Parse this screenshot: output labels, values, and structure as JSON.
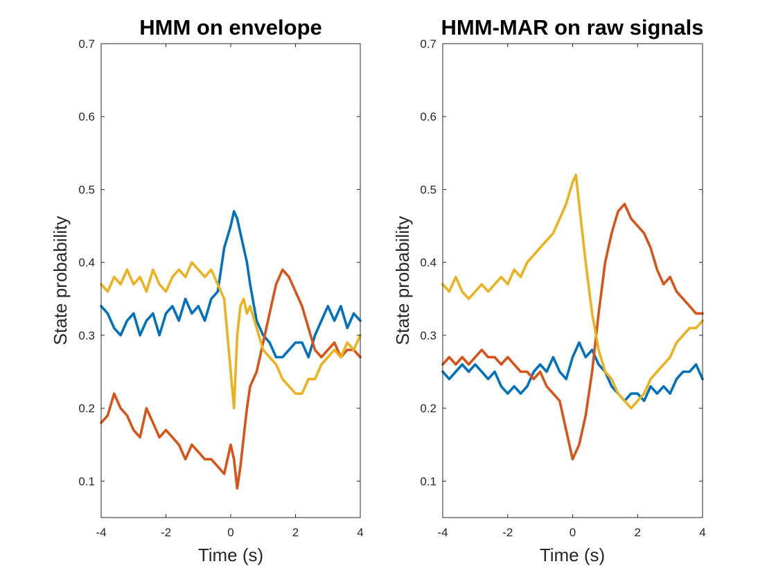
{
  "chart_data": [
    {
      "type": "line",
      "title": "HMM on envelope",
      "xlabel": "Time (s)",
      "ylabel": "State probability",
      "xlim": [
        -4,
        4
      ],
      "ylim": [
        0.05,
        0.7
      ],
      "xticks": [
        -4,
        -2,
        0,
        2,
        4
      ],
      "yticks": [
        0.1,
        0.2,
        0.3,
        0.4,
        0.5,
        0.6,
        0.7
      ],
      "grid": false,
      "series": [
        {
          "color": "#0072BD",
          "x": [
            -4.0,
            -3.8,
            -3.6,
            -3.4,
            -3.2,
            -3.0,
            -2.8,
            -2.6,
            -2.4,
            -2.2,
            -2.0,
            -1.8,
            -1.6,
            -1.4,
            -1.2,
            -1.0,
            -0.8,
            -0.6,
            -0.4,
            -0.2,
            0.0,
            0.1,
            0.2,
            0.3,
            0.4,
            0.5,
            0.6,
            0.8,
            1.0,
            1.2,
            1.4,
            1.6,
            1.8,
            2.0,
            2.2,
            2.4,
            2.6,
            2.8,
            3.0,
            3.2,
            3.4,
            3.6,
            3.8,
            4.0
          ],
          "y": [
            0.34,
            0.33,
            0.31,
            0.3,
            0.32,
            0.33,
            0.3,
            0.32,
            0.33,
            0.3,
            0.33,
            0.34,
            0.32,
            0.35,
            0.33,
            0.34,
            0.32,
            0.35,
            0.36,
            0.42,
            0.45,
            0.47,
            0.46,
            0.44,
            0.42,
            0.4,
            0.37,
            0.32,
            0.3,
            0.29,
            0.27,
            0.27,
            0.28,
            0.29,
            0.29,
            0.27,
            0.3,
            0.32,
            0.34,
            0.32,
            0.34,
            0.31,
            0.33,
            0.32
          ]
        },
        {
          "color": "#D95319",
          "x": [
            -4.0,
            -3.8,
            -3.6,
            -3.4,
            -3.2,
            -3.0,
            -2.8,
            -2.6,
            -2.4,
            -2.2,
            -2.0,
            -1.8,
            -1.6,
            -1.4,
            -1.2,
            -1.0,
            -0.8,
            -0.6,
            -0.4,
            -0.2,
            0.0,
            0.1,
            0.2,
            0.3,
            0.4,
            0.5,
            0.6,
            0.8,
            1.0,
            1.2,
            1.4,
            1.6,
            1.8,
            2.0,
            2.2,
            2.4,
            2.6,
            2.8,
            3.0,
            3.2,
            3.4,
            3.6,
            3.8,
            4.0
          ],
          "y": [
            0.18,
            0.19,
            0.22,
            0.2,
            0.19,
            0.17,
            0.16,
            0.2,
            0.18,
            0.16,
            0.17,
            0.16,
            0.15,
            0.13,
            0.15,
            0.14,
            0.13,
            0.13,
            0.12,
            0.11,
            0.15,
            0.13,
            0.09,
            0.12,
            0.16,
            0.2,
            0.23,
            0.25,
            0.29,
            0.33,
            0.37,
            0.39,
            0.38,
            0.36,
            0.34,
            0.31,
            0.28,
            0.27,
            0.28,
            0.29,
            0.27,
            0.28,
            0.28,
            0.27
          ]
        },
        {
          "color": "#EDB120",
          "x": [
            -4.0,
            -3.8,
            -3.6,
            -3.4,
            -3.2,
            -3.0,
            -2.8,
            -2.6,
            -2.4,
            -2.2,
            -2.0,
            -1.8,
            -1.6,
            -1.4,
            -1.2,
            -1.0,
            -0.8,
            -0.6,
            -0.4,
            -0.2,
            0.0,
            0.1,
            0.2,
            0.3,
            0.4,
            0.5,
            0.6,
            0.8,
            1.0,
            1.2,
            1.4,
            1.6,
            1.8,
            2.0,
            2.2,
            2.4,
            2.6,
            2.8,
            3.0,
            3.2,
            3.4,
            3.6,
            3.8,
            4.0
          ],
          "y": [
            0.37,
            0.36,
            0.38,
            0.37,
            0.39,
            0.37,
            0.38,
            0.36,
            0.39,
            0.37,
            0.36,
            0.38,
            0.39,
            0.38,
            0.4,
            0.39,
            0.38,
            0.39,
            0.37,
            0.35,
            0.25,
            0.2,
            0.3,
            0.34,
            0.35,
            0.33,
            0.34,
            0.31,
            0.28,
            0.27,
            0.26,
            0.24,
            0.23,
            0.22,
            0.22,
            0.24,
            0.24,
            0.26,
            0.27,
            0.28,
            0.27,
            0.29,
            0.28,
            0.3
          ]
        }
      ]
    },
    {
      "type": "line",
      "title": "HMM-MAR on raw signals",
      "xlabel": "Time (s)",
      "ylabel": "State probability",
      "xlim": [
        -4,
        4
      ],
      "ylim": [
        0.05,
        0.7
      ],
      "xticks": [
        -4,
        -2,
        0,
        2,
        4
      ],
      "yticks": [
        0.1,
        0.2,
        0.3,
        0.4,
        0.5,
        0.6,
        0.7
      ],
      "grid": false,
      "series": [
        {
          "color": "#0072BD",
          "x": [
            -4.0,
            -3.8,
            -3.6,
            -3.4,
            -3.2,
            -3.0,
            -2.8,
            -2.6,
            -2.4,
            -2.2,
            -2.0,
            -1.8,
            -1.6,
            -1.4,
            -1.2,
            -1.0,
            -0.8,
            -0.6,
            -0.4,
            -0.2,
            0.0,
            0.2,
            0.4,
            0.6,
            0.8,
            1.0,
            1.2,
            1.4,
            1.6,
            1.8,
            2.0,
            2.2,
            2.4,
            2.6,
            2.8,
            3.0,
            3.2,
            3.4,
            3.6,
            3.8,
            4.0
          ],
          "y": [
            0.25,
            0.24,
            0.25,
            0.26,
            0.25,
            0.26,
            0.25,
            0.24,
            0.25,
            0.23,
            0.22,
            0.23,
            0.22,
            0.23,
            0.25,
            0.26,
            0.25,
            0.27,
            0.25,
            0.24,
            0.27,
            0.29,
            0.27,
            0.28,
            0.26,
            0.25,
            0.23,
            0.22,
            0.21,
            0.22,
            0.22,
            0.21,
            0.23,
            0.22,
            0.23,
            0.22,
            0.24,
            0.25,
            0.25,
            0.26,
            0.24
          ]
        },
        {
          "color": "#D95319",
          "x": [
            -4.0,
            -3.8,
            -3.6,
            -3.4,
            -3.2,
            -3.0,
            -2.8,
            -2.6,
            -2.4,
            -2.2,
            -2.0,
            -1.8,
            -1.6,
            -1.4,
            -1.2,
            -1.0,
            -0.8,
            -0.6,
            -0.4,
            -0.2,
            0.0,
            0.2,
            0.4,
            0.6,
            0.8,
            1.0,
            1.2,
            1.4,
            1.6,
            1.8,
            2.0,
            2.2,
            2.4,
            2.6,
            2.8,
            3.0,
            3.2,
            3.4,
            3.6,
            3.8,
            4.0
          ],
          "y": [
            0.26,
            0.27,
            0.26,
            0.27,
            0.26,
            0.27,
            0.28,
            0.27,
            0.27,
            0.26,
            0.27,
            0.26,
            0.25,
            0.25,
            0.24,
            0.25,
            0.23,
            0.22,
            0.21,
            0.17,
            0.13,
            0.15,
            0.19,
            0.25,
            0.33,
            0.4,
            0.44,
            0.47,
            0.48,
            0.46,
            0.45,
            0.44,
            0.42,
            0.39,
            0.37,
            0.38,
            0.36,
            0.35,
            0.34,
            0.33,
            0.33
          ]
        },
        {
          "color": "#EDB120",
          "x": [
            -4.0,
            -3.8,
            -3.6,
            -3.4,
            -3.2,
            -3.0,
            -2.8,
            -2.6,
            -2.4,
            -2.2,
            -2.0,
            -1.8,
            -1.6,
            -1.4,
            -1.2,
            -1.0,
            -0.8,
            -0.6,
            -0.4,
            -0.2,
            0.0,
            0.1,
            0.2,
            0.4,
            0.6,
            0.8,
            1.0,
            1.2,
            1.4,
            1.6,
            1.8,
            2.0,
            2.2,
            2.4,
            2.6,
            2.8,
            3.0,
            3.2,
            3.4,
            3.6,
            3.8,
            4.0
          ],
          "y": [
            0.37,
            0.36,
            0.38,
            0.36,
            0.35,
            0.36,
            0.37,
            0.36,
            0.37,
            0.38,
            0.37,
            0.39,
            0.38,
            0.4,
            0.41,
            0.42,
            0.43,
            0.44,
            0.46,
            0.48,
            0.51,
            0.52,
            0.48,
            0.4,
            0.33,
            0.28,
            0.25,
            0.24,
            0.22,
            0.21,
            0.2,
            0.21,
            0.22,
            0.24,
            0.25,
            0.26,
            0.27,
            0.29,
            0.3,
            0.31,
            0.31,
            0.32
          ]
        }
      ]
    }
  ]
}
